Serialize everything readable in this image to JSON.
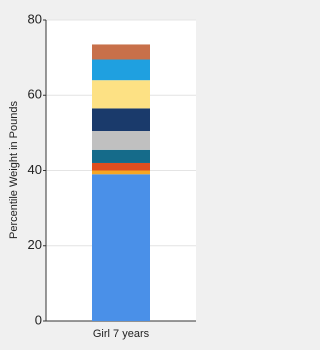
{
  "chart_data": {
    "type": "stacked-bar",
    "y_label": "Percentile Weight in Pounds",
    "categories": [
      "Girl 7 years"
    ],
    "series": [
      {
        "color": "#4a90e8",
        "values": [
          39
        ]
      },
      {
        "color": "#f5a623",
        "values": [
          1
        ]
      },
      {
        "color": "#e04e1f",
        "values": [
          2
        ]
      },
      {
        "color": "#156b8a",
        "values": [
          3.5
        ]
      },
      {
        "color": "#c0c0c0",
        "values": [
          5
        ]
      },
      {
        "color": "#1a3a6b",
        "values": [
          6
        ]
      },
      {
        "color": "#fde184",
        "values": [
          7.5
        ]
      },
      {
        "color": "#1fa0e0",
        "values": [
          5.5
        ]
      },
      {
        "color": "#c8704a",
        "values": [
          4
        ]
      }
    ],
    "ylim": [
      0,
      80
    ],
    "yticks": [
      0,
      20,
      40,
      60,
      80
    ],
    "grid": true
  }
}
